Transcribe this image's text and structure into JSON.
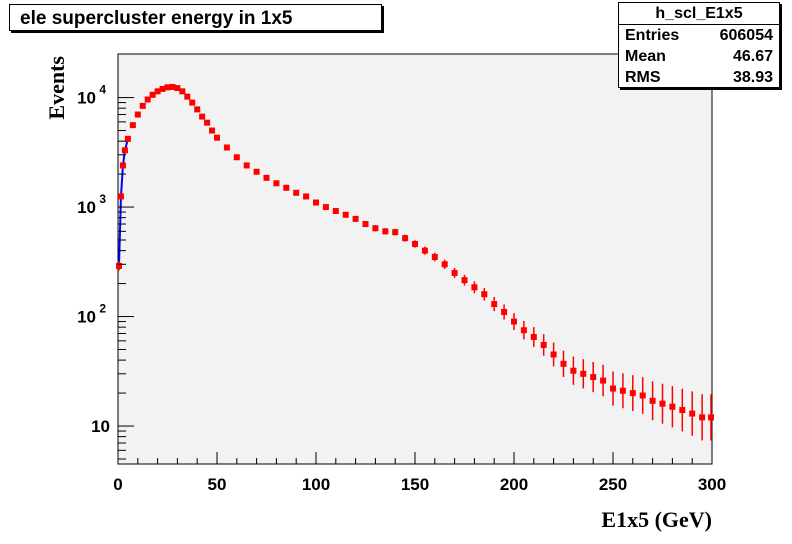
{
  "title": "ele supercluster energy in 1x5",
  "stats": {
    "name": "h_scl_E1x5",
    "rows": [
      {
        "label": "Entries",
        "value": "606054"
      },
      {
        "label": "Mean",
        "value": "46.67"
      },
      {
        "label": "RMS",
        "value": "38.93"
      }
    ]
  },
  "colors": {
    "frame_bg": "#f2f2f2",
    "marker": "#ff0000",
    "line": "#0000ff"
  },
  "chart_data": {
    "type": "scatter",
    "title": "ele supercluster energy in 1x5",
    "xlabel": "E1x5 (GeV)",
    "ylabel": "Events",
    "xlim": [
      0,
      300
    ],
    "ylim": [
      4.5,
      25000
    ],
    "yscale": "log",
    "grid": false,
    "x_ticks": [
      0,
      50,
      100,
      150,
      200,
      250,
      300
    ],
    "y_ticks": [
      {
        "value": 10,
        "label": "10"
      },
      {
        "value": 100,
        "label": "10",
        "exp": "2"
      },
      {
        "value": 1000,
        "label": "10",
        "exp": "3"
      },
      {
        "value": 10000,
        "label": "10",
        "exp": "4"
      }
    ],
    "series": [
      {
        "x": [
          0.5,
          1.5,
          2.5,
          3.5,
          5,
          7.5,
          10,
          12.5,
          15,
          17.5,
          20,
          22.5,
          25,
          27.5,
          30,
          32.5,
          35,
          37.5,
          40,
          42.5,
          45,
          47.5,
          50,
          55,
          60,
          65,
          70,
          75,
          80,
          85,
          90,
          95,
          100,
          105,
          110,
          115,
          120,
          125,
          130,
          135,
          140,
          145,
          150,
          155,
          160,
          165,
          170,
          175,
          180,
          185,
          190,
          195,
          200,
          205,
          210,
          215,
          220,
          225,
          230,
          235,
          240,
          245,
          250,
          255,
          260,
          265,
          270,
          275,
          280,
          285,
          290,
          295,
          299.5
        ],
        "y": [
          290,
          1250,
          2400,
          3300,
          4200,
          5600,
          7000,
          8400,
          9600,
          10600,
          11400,
          12000,
          12400,
          12500,
          12200,
          11400,
          10200,
          9000,
          7800,
          6700,
          5900,
          5000,
          4300,
          3500,
          2850,
          2400,
          2100,
          1850,
          1650,
          1500,
          1350,
          1250,
          1100,
          1000,
          920,
          850,
          780,
          700,
          640,
          600,
          590,
          520,
          460,
          400,
          350,
          300,
          250,
          215,
          185,
          160,
          130,
          110,
          90,
          75,
          65,
          55,
          45,
          37,
          32,
          30,
          28,
          26,
          22,
          21,
          20,
          19,
          17,
          16,
          15,
          14,
          13,
          12,
          12
        ]
      }
    ]
  }
}
